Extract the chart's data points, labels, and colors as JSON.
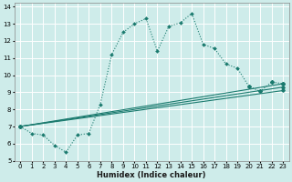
{
  "xlabel": "Humidex (Indice chaleur)",
  "xlim": [
    -0.5,
    23.5
  ],
  "ylim": [
    5,
    14.2
  ],
  "xticks": [
    0,
    1,
    2,
    3,
    4,
    5,
    6,
    7,
    8,
    9,
    10,
    11,
    12,
    13,
    14,
    15,
    16,
    17,
    18,
    19,
    20,
    21,
    22,
    23
  ],
  "yticks": [
    5,
    6,
    7,
    8,
    9,
    10,
    11,
    12,
    13,
    14
  ],
  "bg_color": "#ceecea",
  "line_color": "#1a7a6e",
  "series_zigzag": {
    "x": [
      0,
      1,
      2,
      3,
      4,
      5,
      6,
      7,
      8,
      9,
      10,
      11,
      12,
      13,
      14,
      15,
      16,
      17,
      18,
      19,
      20,
      21,
      22,
      23
    ],
    "y": [
      7.0,
      6.6,
      6.5,
      5.9,
      5.5,
      6.5,
      6.6,
      8.3,
      11.2,
      12.5,
      13.0,
      13.3,
      11.4,
      12.85,
      13.05,
      13.6,
      11.8,
      11.55,
      10.65,
      10.4,
      9.35,
      9.05,
      9.6,
      9.5
    ]
  },
  "series_line1": {
    "x": [
      0,
      20,
      21,
      22,
      23
    ],
    "y": [
      7.0,
      9.35,
      9.05,
      9.6,
      9.5
    ]
  },
  "series_line2": {
    "x": [
      0,
      20,
      21,
      22,
      23
    ],
    "y": [
      7.0,
      9.35,
      9.05,
      9.6,
      9.5
    ]
  },
  "series_line3": {
    "x": [
      0,
      19,
      22,
      23
    ],
    "y": [
      7.0,
      10.4,
      9.6,
      9.5
    ]
  }
}
